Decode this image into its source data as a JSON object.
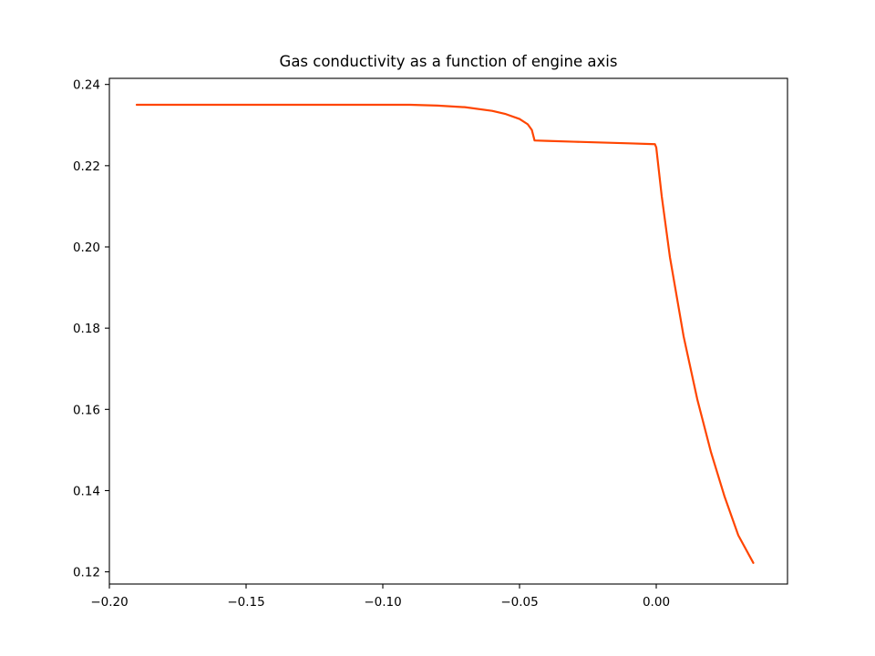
{
  "chart_data": {
    "type": "line",
    "title": "Gas conductivity as a function of engine axis",
    "xlabel": "",
    "ylabel": "",
    "xlim": [
      -0.2,
      0.048
    ],
    "ylim": [
      0.117,
      0.2415
    ],
    "xticks": [
      -0.2,
      -0.15,
      -0.1,
      -0.05,
      0.0
    ],
    "xtick_labels": [
      "−0.20",
      "−0.15",
      "−0.10",
      "−0.05",
      "0.00"
    ],
    "yticks": [
      0.12,
      0.14,
      0.16,
      0.18,
      0.2,
      0.22,
      0.24
    ],
    "ytick_labels": [
      "0.12",
      "0.14",
      "0.16",
      "0.18",
      "0.20",
      "0.22",
      "0.24"
    ],
    "grid": false,
    "series": [
      {
        "color": "#ff4500",
        "x": [
          -0.19,
          -0.15,
          -0.12,
          -0.09,
          -0.08,
          -0.07,
          -0.06,
          -0.055,
          -0.05,
          -0.047,
          -0.0455,
          -0.0445,
          -0.04,
          -0.03,
          -0.02,
          -0.01,
          -0.0005,
          0.0,
          0.002,
          0.005,
          0.01,
          0.015,
          0.02,
          0.025,
          0.03,
          0.0355
        ],
        "y": [
          0.235,
          0.235,
          0.235,
          0.235,
          0.2348,
          0.2344,
          0.2335,
          0.2327,
          0.2315,
          0.2302,
          0.2288,
          0.2262,
          0.2261,
          0.2259,
          0.2257,
          0.2255,
          0.2253,
          0.2245,
          0.2125,
          0.1975,
          0.178,
          0.1625,
          0.1495,
          0.1385,
          0.129,
          0.1222
        ]
      }
    ]
  }
}
